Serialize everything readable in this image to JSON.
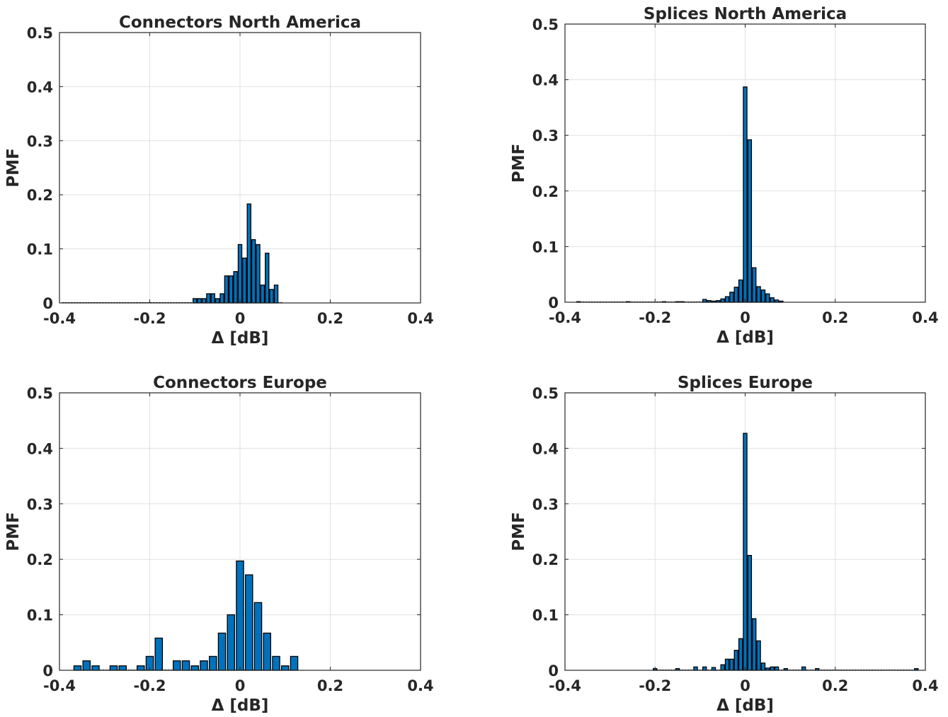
{
  "chart_data": [
    {
      "type": "bar",
      "title": "Connectors North America",
      "xlabel": "Δ [dB]",
      "ylabel": "PMF",
      "xlim": [
        -0.4,
        0.4
      ],
      "ylim": [
        0,
        0.5
      ],
      "xticks": [
        "-0.4",
        "-0.2",
        "0",
        "0.2",
        "0.4"
      ],
      "yticks": [
        "0",
        "0.1",
        "0.2",
        "0.3",
        "0.4",
        "0.5"
      ],
      "grid": true,
      "bin_width": 0.01,
      "x": [
        -0.39,
        -0.38,
        -0.37,
        -0.36,
        -0.35,
        -0.34,
        -0.33,
        -0.32,
        -0.31,
        -0.3,
        -0.29,
        -0.28,
        -0.27,
        -0.26,
        -0.25,
        -0.24,
        -0.23,
        -0.22,
        -0.21,
        -0.2,
        -0.19,
        -0.18,
        -0.17,
        -0.16,
        -0.15,
        -0.14,
        -0.13,
        -0.12,
        -0.11,
        -0.1,
        -0.09,
        -0.08,
        -0.07,
        -0.06,
        -0.05,
        -0.04,
        -0.03,
        -0.02,
        -0.01,
        0.0,
        0.01,
        0.02,
        0.03,
        0.04,
        0.05,
        0.06,
        0.07,
        0.08,
        0.09
      ],
      "values": [
        0,
        0,
        0,
        0,
        0,
        0,
        0,
        0,
        0,
        0,
        0,
        0,
        0,
        0,
        0,
        0,
        0,
        0,
        0,
        0,
        0,
        0,
        0,
        0,
        0,
        0,
        0,
        0,
        0,
        0.008,
        0.008,
        0.008,
        0.017,
        0.017,
        0.008,
        0.017,
        0.05,
        0.05,
        0.058,
        0.108,
        0.083,
        0.183,
        0.117,
        0.108,
        0.033,
        0.092,
        0.025,
        0.033,
        0
      ]
    },
    {
      "type": "bar",
      "title": "Splices North America",
      "xlabel": "Δ [dB]",
      "ylabel": "PMF",
      "xlim": [
        -0.4,
        0.4
      ],
      "ylim": [
        0,
        0.5
      ],
      "xticks": [
        "-0.4",
        "-0.2",
        "0",
        "0.2",
        "0.4"
      ],
      "yticks": [
        "0",
        "0.1",
        "0.2",
        "0.3",
        "0.4",
        "0.5"
      ],
      "grid": true,
      "bin_width": 0.01,
      "x": [
        -0.37,
        -0.26,
        -0.18,
        -0.15,
        -0.14,
        -0.09,
        -0.08,
        -0.07,
        -0.06,
        -0.05,
        -0.04,
        -0.03,
        -0.02,
        -0.01,
        0.0,
        0.01,
        0.02,
        0.03,
        0.04,
        0.05,
        0.06,
        0.07,
        0.08
      ],
      "values": [
        0.001,
        0.001,
        0.001,
        0.001,
        0.001,
        0.005,
        0.003,
        0.002,
        0.003,
        0.006,
        0.01,
        0.018,
        0.027,
        0.04,
        0.387,
        0.292,
        0.062,
        0.028,
        0.022,
        0.015,
        0.008,
        0.004,
        0.002
      ]
    },
    {
      "type": "bar",
      "title": "Connectors Europe",
      "xlabel": "Δ [dB]",
      "ylabel": "PMF",
      "xlim": [
        -0.4,
        0.4
      ],
      "ylim": [
        0,
        0.5
      ],
      "xticks": [
        "-0.4",
        "-0.2",
        "0",
        "0.2",
        "0.4"
      ],
      "yticks": [
        "0",
        "0.1",
        "0.2",
        "0.3",
        "0.4",
        "0.5"
      ],
      "grid": true,
      "bin_width": 0.02,
      "x": [
        -0.36,
        -0.34,
        -0.32,
        -0.3,
        -0.28,
        -0.26,
        -0.24,
        -0.22,
        -0.2,
        -0.18,
        -0.16,
        -0.14,
        -0.12,
        -0.1,
        -0.08,
        -0.06,
        -0.04,
        -0.02,
        0.0,
        0.02,
        0.04,
        0.06,
        0.08,
        0.1,
        0.12
      ],
      "values": [
        0.008,
        0.017,
        0.008,
        0,
        0.008,
        0.008,
        0,
        0.008,
        0.025,
        0.058,
        0,
        0.017,
        0.017,
        0.008,
        0.017,
        0.025,
        0.067,
        0.1,
        0.197,
        0.172,
        0.122,
        0.067,
        0.025,
        0.008,
        0.025
      ]
    },
    {
      "type": "bar",
      "title": "Splices Europe",
      "xlabel": "Δ [dB]",
      "ylabel": "PMF",
      "xlim": [
        -0.4,
        0.4
      ],
      "ylim": [
        0,
        0.5
      ],
      "xticks": [
        "-0.4",
        "-0.2",
        "0",
        "0.2",
        "0.4"
      ],
      "yticks": [
        "0",
        "0.1",
        "0.2",
        "0.3",
        "0.4",
        "0.5"
      ],
      "grid": true,
      "bin_width": 0.01,
      "x": [
        -0.2,
        -0.15,
        -0.11,
        -0.09,
        -0.07,
        -0.05,
        -0.04,
        -0.03,
        -0.02,
        -0.01,
        0.0,
        0.01,
        0.02,
        0.03,
        0.04,
        0.05,
        0.06,
        0.07,
        0.09,
        0.13,
        0.16,
        0.38
      ],
      "values": [
        0.003,
        0.003,
        0.006,
        0.006,
        0.005,
        0.01,
        0.02,
        0.02,
        0.036,
        0.057,
        0.427,
        0.207,
        0.093,
        0.053,
        0.013,
        0.004,
        0.006,
        0.006,
        0.003,
        0.006,
        0.003,
        0.003
      ]
    }
  ]
}
